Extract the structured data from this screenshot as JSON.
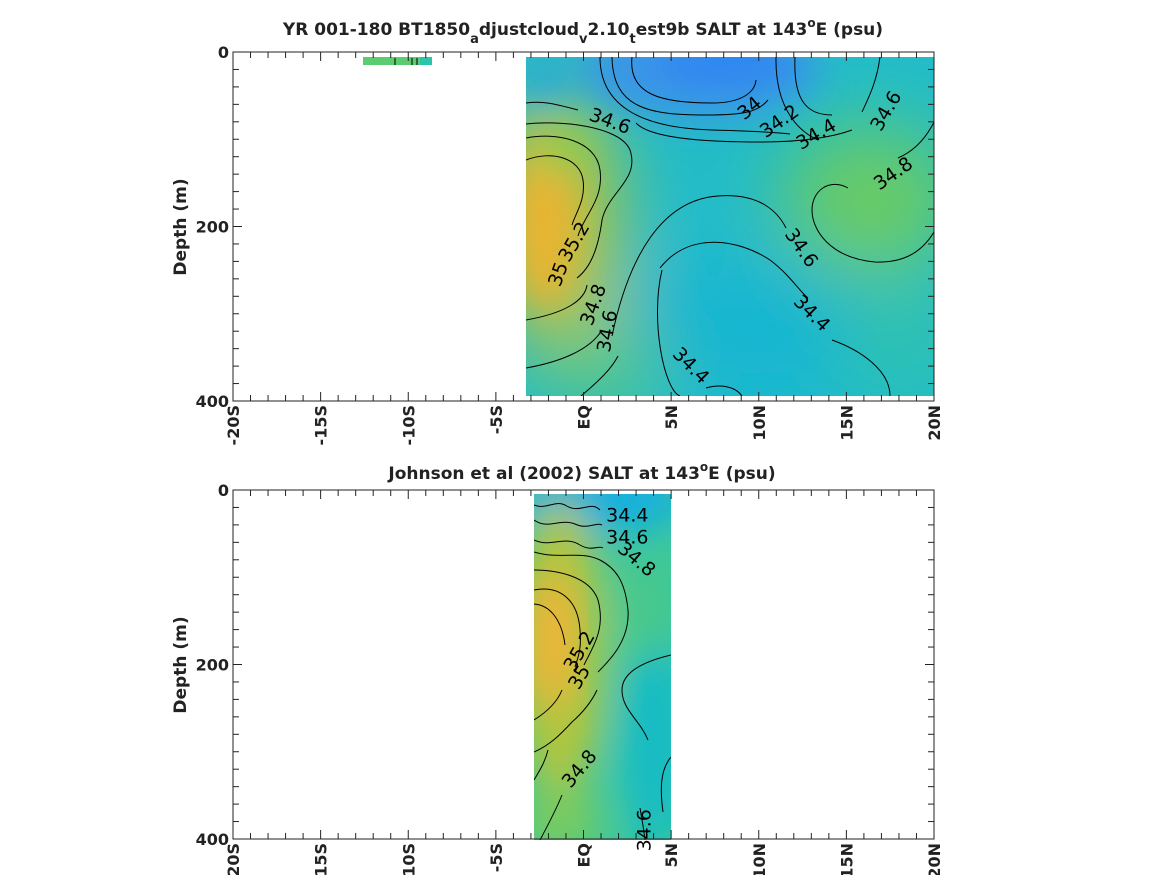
{
  "chart_data": [
    {
      "type": "heatmap",
      "title_parts": [
        "YR 001-180 BT1850",
        "a",
        "djustcloud",
        "v",
        "2.10",
        "t",
        "est9b SALT at 143",
        "o",
        "E (psu)"
      ],
      "ylabel": "Depth (m)",
      "xlim": [
        -20,
        20
      ],
      "ylim": [
        400,
        0
      ],
      "x_ticks": [
        -20,
        -15,
        -10,
        -5,
        0,
        5,
        10,
        15,
        20
      ],
      "x_tick_labels": [
        "-20S",
        "-15S",
        "-10S",
        "-5S",
        "EQ",
        "5N",
        "10N",
        "15N",
        "20N"
      ],
      "y_ticks": [
        0,
        200,
        400
      ],
      "y_tick_labels": [
        "0",
        "200",
        "400"
      ],
      "data_extent": {
        "lat": [
          -3.5,
          20
        ],
        "depth": [
          5,
          395
        ]
      },
      "contour_labels": [
        {
          "text": "34",
          "lat": 9.5,
          "depth": 65,
          "angle": -40
        },
        {
          "text": "34.2",
          "lat": 11.2,
          "depth": 80,
          "angle": -35
        },
        {
          "text": "34.4",
          "lat": 13.3,
          "depth": 95,
          "angle": -30
        },
        {
          "text": "34.6",
          "lat": 1.5,
          "depth": 80,
          "angle": 20
        },
        {
          "text": "34.6",
          "lat": 17.3,
          "depth": 68,
          "angle": -60
        },
        {
          "text": "34.8",
          "lat": 17.7,
          "depth": 140,
          "angle": -35
        },
        {
          "text": "34.6",
          "lat": 12.4,
          "depth": 225,
          "angle": 55
        },
        {
          "text": "34.4",
          "lat": 13.0,
          "depth": 300,
          "angle": 45
        },
        {
          "text": "34.4",
          "lat": 6.1,
          "depth": 360,
          "angle": 45
        },
        {
          "text": "35.2",
          "lat": -0.5,
          "depth": 218,
          "angle": -60
        },
        {
          "text": "35",
          "lat": -1.4,
          "depth": 255,
          "angle": -70
        },
        {
          "text": "34.8",
          "lat": 0.6,
          "depth": 290,
          "angle": -70
        },
        {
          "text": "34.6",
          "lat": 1.4,
          "depth": 320,
          "angle": -80
        }
      ]
    },
    {
      "type": "heatmap",
      "title_parts": [
        "Johnson et al (2002) SALT at 143",
        "o",
        "E (psu)"
      ],
      "ylabel": "Depth (m)",
      "xlim": [
        -20,
        20
      ],
      "ylim": [
        400,
        0
      ],
      "x_ticks": [
        -20,
        -15,
        -10,
        -5,
        0,
        5,
        10,
        15,
        20
      ],
      "x_tick_labels": [
        "-20S",
        "-15S",
        "-10S",
        "-5S",
        "EQ",
        "5N",
        "10N",
        "15N",
        "20N"
      ],
      "y_ticks": [
        0,
        200,
        400
      ],
      "y_tick_labels": [
        "0",
        "200",
        "400"
      ],
      "data_extent": {
        "lat": [
          -3,
          5
        ],
        "depth": [
          5,
          400
        ]
      },
      "contour_labels": [
        {
          "text": "34.4",
          "lat": 2.5,
          "depth": 30,
          "angle": 0
        },
        {
          "text": "34.6",
          "lat": 2.5,
          "depth": 55,
          "angle": 0
        },
        {
          "text": "34.8",
          "lat": 3.0,
          "depth": 80,
          "angle": 40
        },
        {
          "text": "35.2",
          "lat": -0.2,
          "depth": 185,
          "angle": -60
        },
        {
          "text": "35",
          "lat": -0.2,
          "depth": 215,
          "angle": -60
        },
        {
          "text": "34.8",
          "lat": -0.2,
          "depth": 320,
          "angle": -50
        },
        {
          "text": "34.6",
          "lat": 3.5,
          "depth": 390,
          "angle": -90
        }
      ]
    }
  ],
  "colors": {
    "fresh_blue": "#3388f0",
    "cyan": "#14b4d2",
    "teal": "#2ac4b0",
    "green": "#5acd72",
    "yellow_green": "#b4c63c",
    "salty_orange": "#f0b432"
  }
}
